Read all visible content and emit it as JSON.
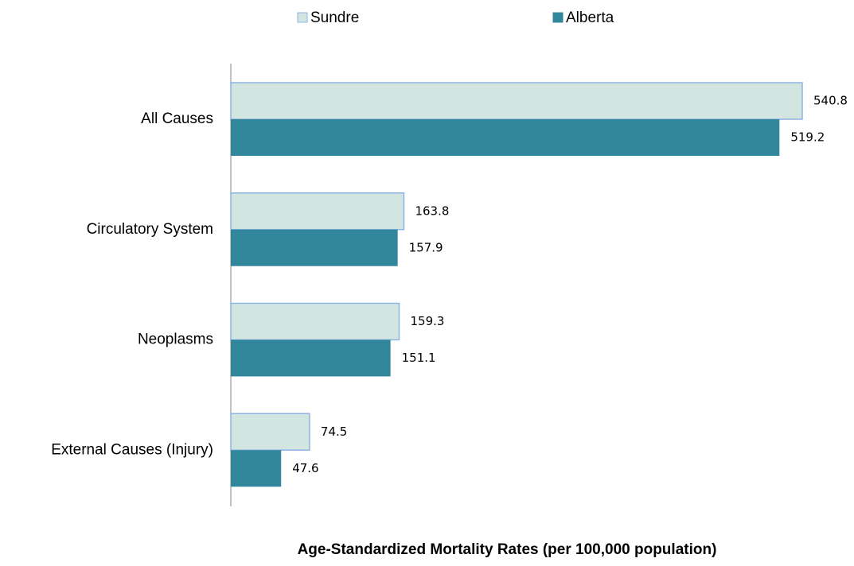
{
  "chart_data": {
    "type": "hbar",
    "x_label": "Age-Standardized Mortality Rates (per 100,000 population)",
    "categories": [
      "All Causes",
      "Circulatory System",
      "Neoplasms",
      "External Causes (Injury)"
    ],
    "series": [
      {
        "name": "Sundre",
        "color": "#d3e5e1",
        "edge": "#8eb4e3",
        "values": [
          540.8,
          163.8,
          159.3,
          74.5
        ]
      },
      {
        "name": "Alberta",
        "color": "#31869b",
        "values": [
          519.2,
          157.9,
          151.1,
          47.6
        ]
      }
    ],
    "legend": "top"
  }
}
